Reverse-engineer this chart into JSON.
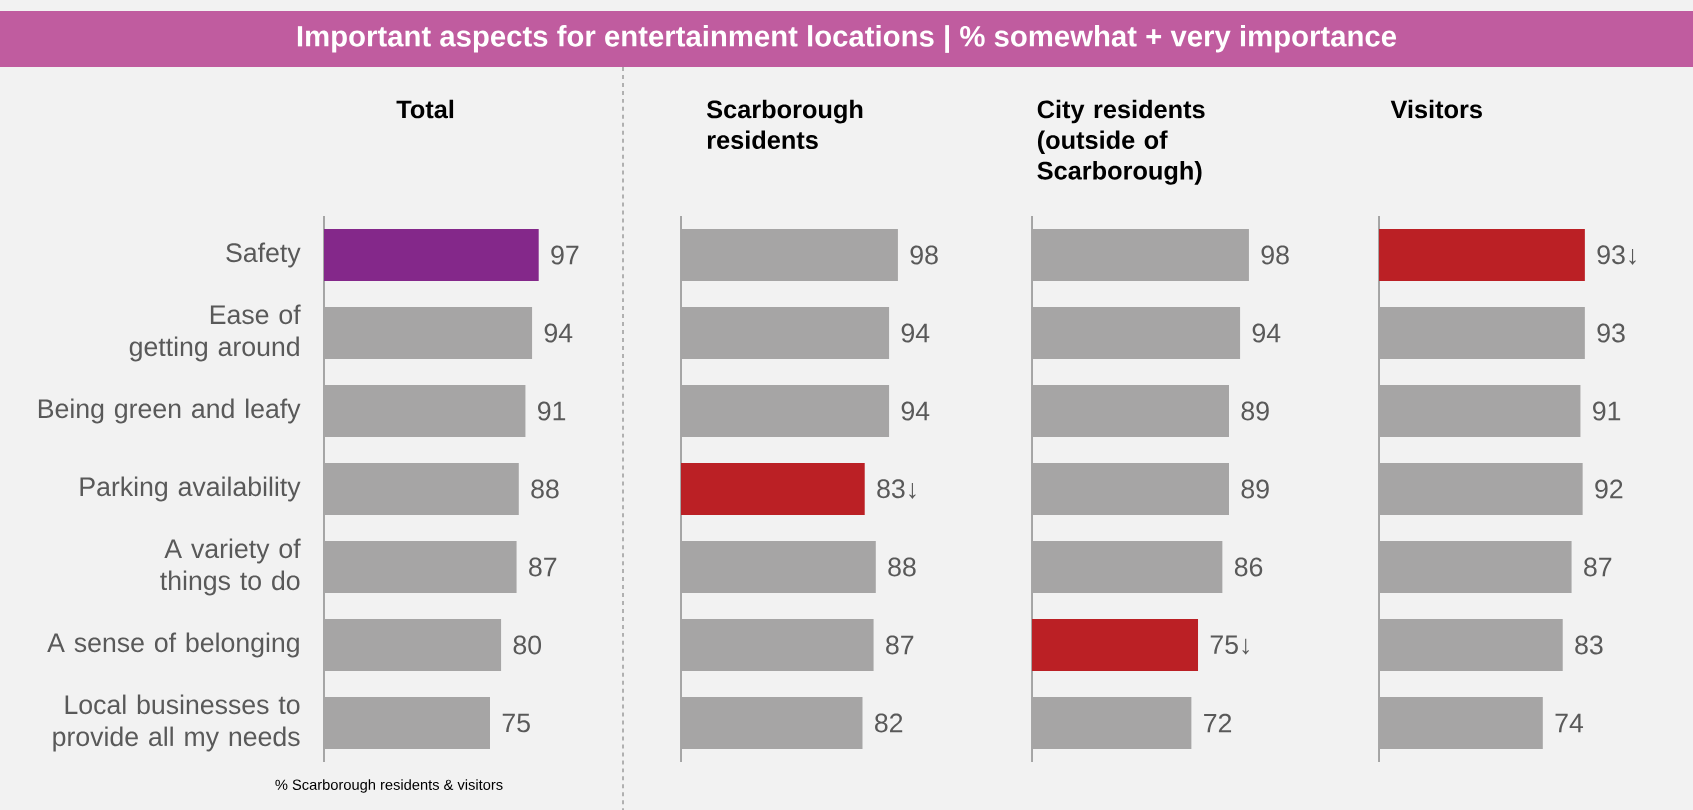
{
  "chart_data": [
    {
      "type": "bar",
      "orientation": "horizontal",
      "title": "Total",
      "categories": [
        "Safety",
        "Ease of getting around",
        "Being green and leafy",
        "Parking availability",
        "A variety of things to do",
        "A sense of belonging",
        "Local businesses to provide all my needs"
      ],
      "values": [
        97,
        94,
        91,
        88,
        87,
        80,
        75
      ],
      "colors": [
        "#84288a",
        "#a6a5a5",
        "#a6a5a5",
        "#a6a5a5",
        "#a6a5a5",
        "#a6a5a5",
        "#a6a5a5"
      ],
      "value_labels": [
        "97",
        "94",
        "91",
        "88",
        "87",
        "80",
        "75"
      ],
      "tick_labels": "y",
      "annotations": [
        "Important aspects for entertainment locations | % somewhat + very importance",
        "% Scarborough residents & visitors"
      ]
    },
    {
      "type": "bar",
      "orientation": "horizontal",
      "title": "Scarborough residents",
      "values": [
        98,
        94,
        94,
        83,
        88,
        87,
        82
      ],
      "colors": [
        "#a6a5a5",
        "#a6a5a5",
        "#a6a5a5",
        "#bb2025",
        "#a6a5a5",
        "#a6a5a5",
        "#a6a5a5"
      ],
      "value_labels": [
        "98",
        "94",
        "94",
        "83↓",
        "88",
        "87",
        "82"
      ],
      "tick_labels": false
    },
    {
      "type": "bar",
      "orientation": "horizontal",
      "title": "City residents (outside of Scarborough)",
      "values": [
        98,
        94,
        89,
        89,
        86,
        75,
        72
      ],
      "colors": [
        "#a6a5a5",
        "#a6a5a5",
        "#a6a5a5",
        "#a6a5a5",
        "#a6a5a5",
        "#bb2025",
        "#a6a5a5"
      ],
      "value_labels": [
        "98",
        "94",
        "89",
        "89",
        "86",
        "75↓",
        "72"
      ],
      "tick_labels": false
    },
    {
      "type": "bar",
      "orientation": "horizontal",
      "title": "Visitors",
      "values": [
        93,
        93,
        91,
        92,
        87,
        83,
        74
      ],
      "colors": [
        "#bb2025",
        "#a6a5a5",
        "#a6a5a5",
        "#a6a5a5",
        "#a6a5a5",
        "#a6a5a5",
        "#a6a5a5"
      ],
      "value_labels": [
        "93↓",
        "93",
        "91",
        "92",
        "87",
        "83",
        "74"
      ],
      "tick_labels": false
    }
  ]
}
